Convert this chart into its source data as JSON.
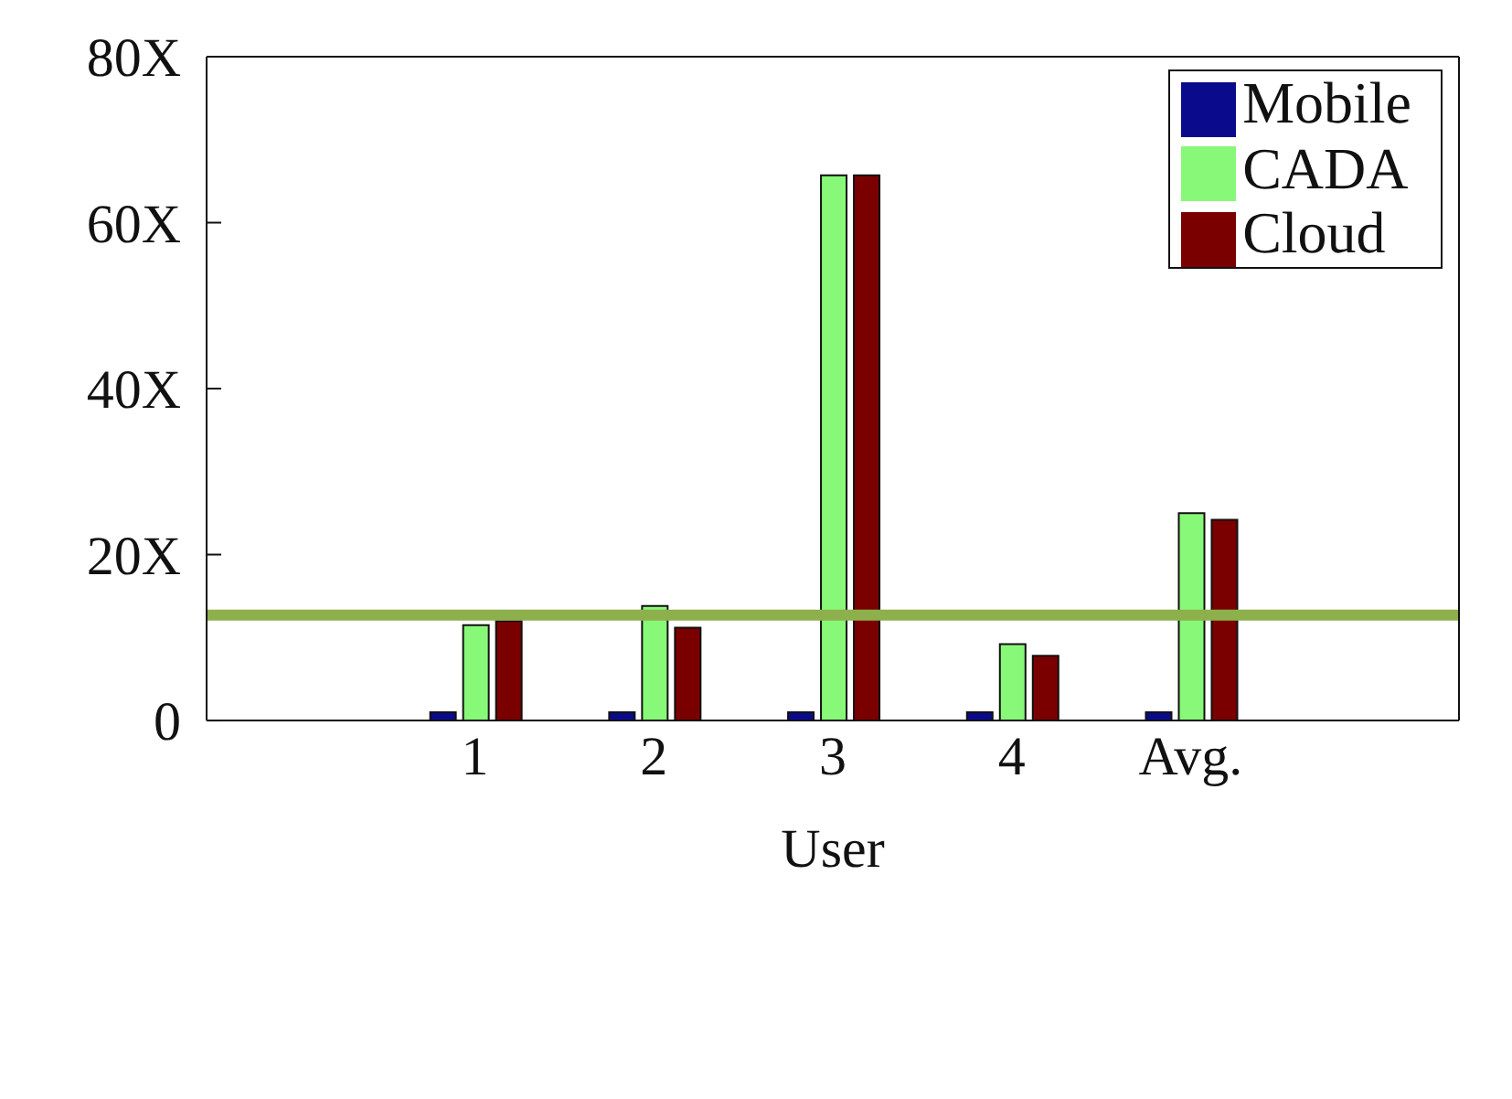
{
  "chart_data": {
    "type": "bar",
    "xlabel": "User",
    "categories": [
      null,
      "1",
      "2",
      "3",
      "4",
      "Avg.",
      null
    ],
    "series": [
      {
        "name": "Mobile",
        "color": "#0a0a8c",
        "values": [
          null,
          1,
          1,
          1,
          1,
          1,
          null
        ]
      },
      {
        "name": "CADA",
        "color": "#88f878",
        "values": [
          null,
          11.5,
          13.8,
          65.7,
          9.2,
          25,
          null
        ]
      },
      {
        "name": "Cloud",
        "color": "#7a0000",
        "values": [
          null,
          12,
          11.2,
          65.7,
          7.8,
          24.2,
          null
        ]
      }
    ],
    "ylim": [
      0,
      80
    ],
    "yticks": [
      0,
      {
        "value": 20,
        "label": "20X"
      },
      {
        "value": 40,
        "label": "40X"
      },
      {
        "value": 60,
        "label": "60X"
      },
      {
        "value": 80,
        "label": "80X"
      }
    ],
    "ref_lines": [
      {
        "axis": "y",
        "value": 12.7,
        "label": null,
        "color": "#8db04c"
      }
    ],
    "grid": false,
    "legend": "top right"
  }
}
